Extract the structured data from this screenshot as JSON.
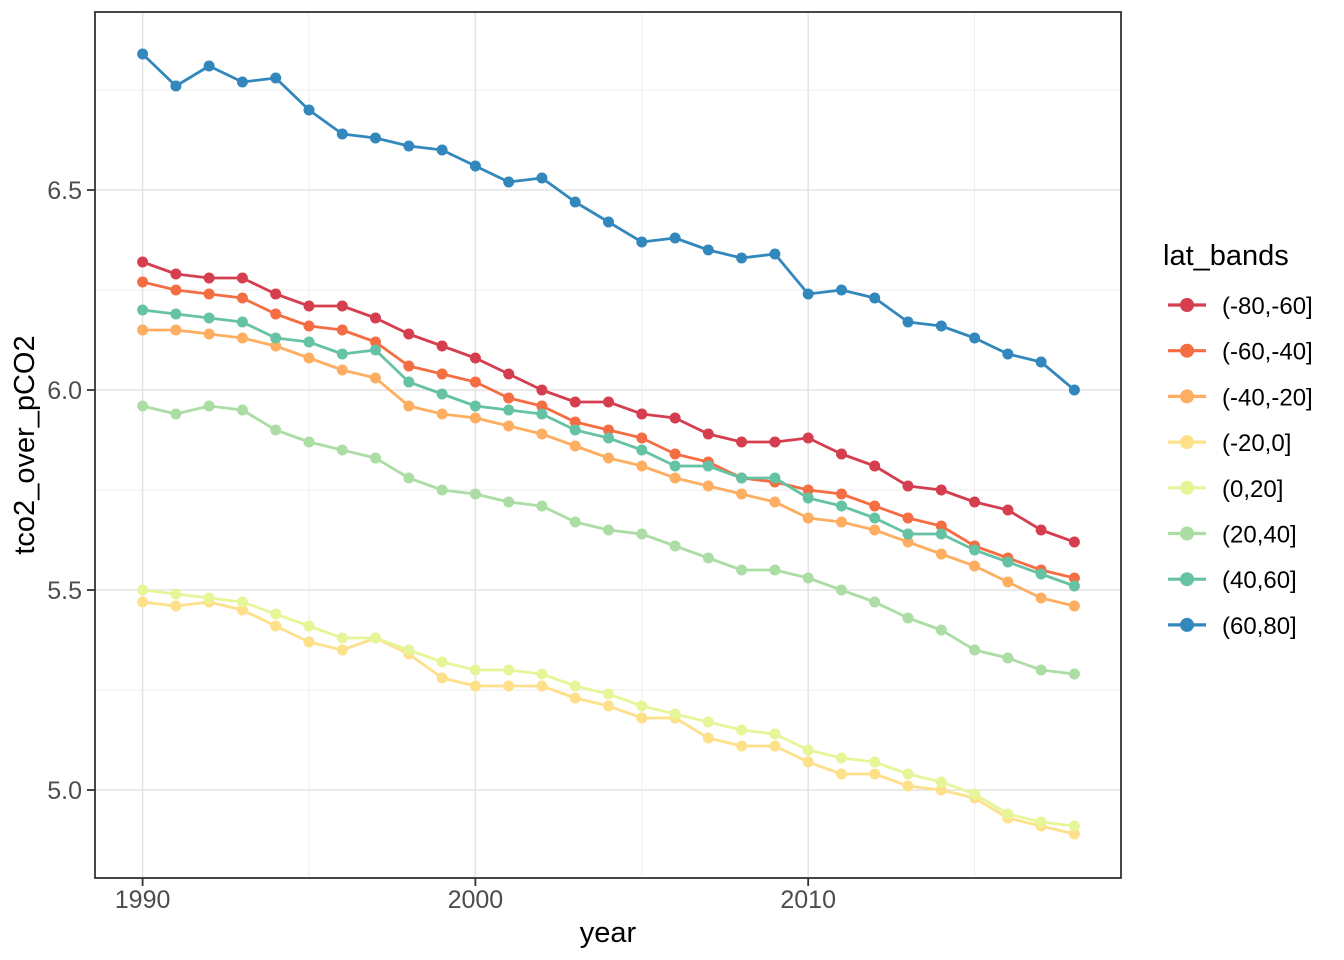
{
  "figure": {
    "background": "#FFFFFF",
    "panel": {
      "border_color": "#333333",
      "grid_major_color": "#E3E3E3",
      "grid_minor_color": "#EDEDED",
      "tick_color": "#333333",
      "tick_label_color": "#4D4D4D",
      "title_color": "#000000"
    }
  },
  "chart_data": {
    "type": "line",
    "title": "",
    "xlabel": "year",
    "ylabel": "tco2_over_pCO2",
    "legend_title": "lat_bands",
    "legend_position": "right",
    "grid": true,
    "xlim": [
      1988.57,
      2019.4
    ],
    "ylim": [
      4.78,
      6.945
    ],
    "x_major_ticks": [
      1990,
      2000,
      2010
    ],
    "x_tick_labels": [
      "1990",
      "2000",
      "2010"
    ],
    "x_minor_ticks": [
      1995,
      2005,
      2015
    ],
    "y_major_ticks": [
      6.5,
      6.0,
      5.5,
      5.0
    ],
    "y_tick_labels": [
      "6.5",
      "6.0",
      "5.5",
      "5.0"
    ],
    "y_minor_ticks": [
      6.75,
      6.25,
      5.75,
      5.25
    ],
    "x": [
      1990,
      1991,
      1992,
      1993,
      1994,
      1995,
      1996,
      1997,
      1998,
      1999,
      2000,
      2001,
      2002,
      2003,
      2004,
      2005,
      2006,
      2007,
      2008,
      2009,
      2010,
      2011,
      2012,
      2013,
      2014,
      2015,
      2016,
      2017,
      2018
    ],
    "series": [
      {
        "name": "(-80,-60]",
        "color": "#D53E4F",
        "values": [
          6.32,
          6.29,
          6.28,
          6.28,
          6.24,
          6.21,
          6.21,
          6.18,
          6.14,
          6.11,
          6.08,
          6.04,
          6.0,
          5.97,
          5.97,
          5.94,
          5.93,
          5.89,
          5.87,
          5.87,
          5.88,
          5.84,
          5.81,
          5.76,
          5.75,
          5.72,
          5.7,
          5.65,
          5.62
        ]
      },
      {
        "name": "(-60,-40]",
        "color": "#F46D43",
        "values": [
          6.27,
          6.25,
          6.24,
          6.23,
          6.19,
          6.16,
          6.15,
          6.12,
          6.06,
          6.04,
          6.02,
          5.98,
          5.96,
          5.92,
          5.9,
          5.88,
          5.84,
          5.82,
          5.78,
          5.77,
          5.75,
          5.74,
          5.71,
          5.68,
          5.66,
          5.61,
          5.58,
          5.55,
          5.53
        ]
      },
      {
        "name": "(-40,-20]",
        "color": "#FDAE61",
        "values": [
          6.15,
          6.15,
          6.14,
          6.13,
          6.11,
          6.08,
          6.05,
          6.03,
          5.96,
          5.94,
          5.93,
          5.91,
          5.89,
          5.86,
          5.83,
          5.81,
          5.78,
          5.76,
          5.74,
          5.72,
          5.68,
          5.67,
          5.65,
          5.62,
          5.59,
          5.56,
          5.52,
          5.48,
          5.46
        ]
      },
      {
        "name": "(-20,0]",
        "color": "#FEE08B",
        "values": [
          5.47,
          5.46,
          5.47,
          5.45,
          5.41,
          5.37,
          5.35,
          5.38,
          5.34,
          5.28,
          5.26,
          5.26,
          5.26,
          5.23,
          5.21,
          5.18,
          5.18,
          5.13,
          5.11,
          5.11,
          5.07,
          5.04,
          5.04,
          5.01,
          5.0,
          4.98,
          4.93,
          4.91,
          4.89
        ]
      },
      {
        "name": "(0,20]",
        "color": "#E6F598",
        "values": [
          5.5,
          5.49,
          5.48,
          5.47,
          5.44,
          5.41,
          5.38,
          5.38,
          5.35,
          5.32,
          5.3,
          5.3,
          5.29,
          5.26,
          5.24,
          5.21,
          5.19,
          5.17,
          5.15,
          5.14,
          5.1,
          5.08,
          5.07,
          5.04,
          5.02,
          4.99,
          4.94,
          4.92,
          4.91
        ]
      },
      {
        "name": "(20,40]",
        "color": "#ABDDA4",
        "values": [
          5.96,
          5.94,
          5.96,
          5.95,
          5.9,
          5.87,
          5.85,
          5.83,
          5.78,
          5.75,
          5.74,
          5.72,
          5.71,
          5.67,
          5.65,
          5.64,
          5.61,
          5.58,
          5.55,
          5.55,
          5.53,
          5.5,
          5.47,
          5.43,
          5.4,
          5.35,
          5.33,
          5.3,
          5.29
        ]
      },
      {
        "name": "(40,60]",
        "color": "#66C2A5",
        "values": [
          6.2,
          6.19,
          6.18,
          6.17,
          6.13,
          6.12,
          6.09,
          6.1,
          6.02,
          5.99,
          5.96,
          5.95,
          5.94,
          5.9,
          5.88,
          5.85,
          5.81,
          5.81,
          5.78,
          5.78,
          5.73,
          5.71,
          5.68,
          5.64,
          5.64,
          5.6,
          5.57,
          5.54,
          5.51
        ]
      },
      {
        "name": "(60,80]",
        "color": "#3288BD",
        "values": [
          6.84,
          6.76,
          6.81,
          6.77,
          6.78,
          6.7,
          6.64,
          6.63,
          6.61,
          6.6,
          6.56,
          6.52,
          6.53,
          6.47,
          6.42,
          6.37,
          6.38,
          6.35,
          6.33,
          6.34,
          6.24,
          6.25,
          6.23,
          6.17,
          6.16,
          6.13,
          6.09,
          6.07,
          6.0
        ]
      }
    ]
  }
}
